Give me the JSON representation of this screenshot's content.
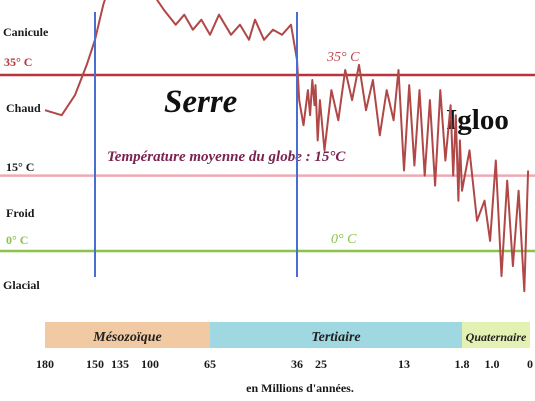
{
  "chart_data": {
    "type": "line",
    "xlabel": "en Millions d'années.",
    "x_ticks": [
      "180",
      "150",
      "135",
      "100",
      "65",
      "36",
      "25",
      "13",
      "1.8",
      "1.0",
      "0"
    ],
    "zone_labels": [
      "Canicule",
      "Chaud",
      "Froid",
      "Glacial"
    ],
    "reference_lines": [
      {
        "label": "35° C",
        "value": 35,
        "color": "#b8333a"
      },
      {
        "label": "15° C",
        "value": 15,
        "color": "#f0a9b4"
      },
      {
        "label": "0° C",
        "value": 0,
        "color": "#8bc34a"
      }
    ],
    "line_annotation": "35° C",
    "zero_annotation": "0° C",
    "mean_label": "Température moyenne du globe : 15°C",
    "phases": [
      {
        "label": "Serre",
        "from": 150,
        "to": 36
      },
      {
        "label": "Igloo",
        "from": 36,
        "to": 0
      }
    ],
    "phase_boundaries": [
      150,
      36
    ],
    "eras": [
      {
        "label": "Mésozoïque",
        "from": 180,
        "to": 65,
        "color": "#f1c9a2"
      },
      {
        "label": "Tertiaire",
        "from": 65,
        "to": 1.8,
        "color": "#9fd8e0"
      },
      {
        "label": "Quaternaire",
        "from": 1.8,
        "to": 0,
        "color": "#e3f2b3"
      }
    ],
    "series": [
      {
        "color": "#b04848",
        "x": [
          180,
          170,
          162,
          155,
          150,
          145,
          140,
          135,
          128,
          120,
          110,
          100,
          92,
          85,
          80,
          75,
          70,
          65,
          62,
          58,
          55,
          52,
          50,
          47,
          44,
          41,
          38,
          36,
          35,
          33,
          31,
          30,
          29,
          28,
          27.5,
          26.5,
          25.5,
          24.5,
          23.5,
          22.5,
          21.5,
          20.5,
          19.5,
          18.5,
          17.5,
          16.5,
          15.5,
          14.5,
          13.8,
          13,
          12,
          11,
          10,
          9,
          8,
          7,
          6,
          5,
          4,
          3.5,
          3,
          2.5,
          2.2,
          1.8,
          1.6,
          1.4,
          1.2,
          1.05,
          0.9,
          0.75,
          0.6,
          0.45,
          0.3,
          0.15,
          0.05
        ],
        "y": [
          28,
          27,
          31,
          37,
          42,
          49,
          54,
          56,
          57,
          57,
          56,
          52,
          48,
          45,
          47,
          44,
          46,
          43,
          47,
          43,
          45,
          42,
          46,
          42,
          44,
          43,
          45,
          38,
          30,
          25,
          32,
          27,
          34,
          29,
          33,
          22,
          30,
          20,
          32,
          26,
          36,
          30,
          37,
          28,
          34,
          23,
          32,
          26,
          36,
          16,
          33,
          17,
          32,
          15,
          30,
          13,
          32,
          18,
          29,
          15,
          27,
          10,
          22,
          12,
          20,
          6,
          10,
          2,
          18,
          -5,
          14,
          -3,
          12,
          -8,
          16
        ]
      }
    ]
  }
}
